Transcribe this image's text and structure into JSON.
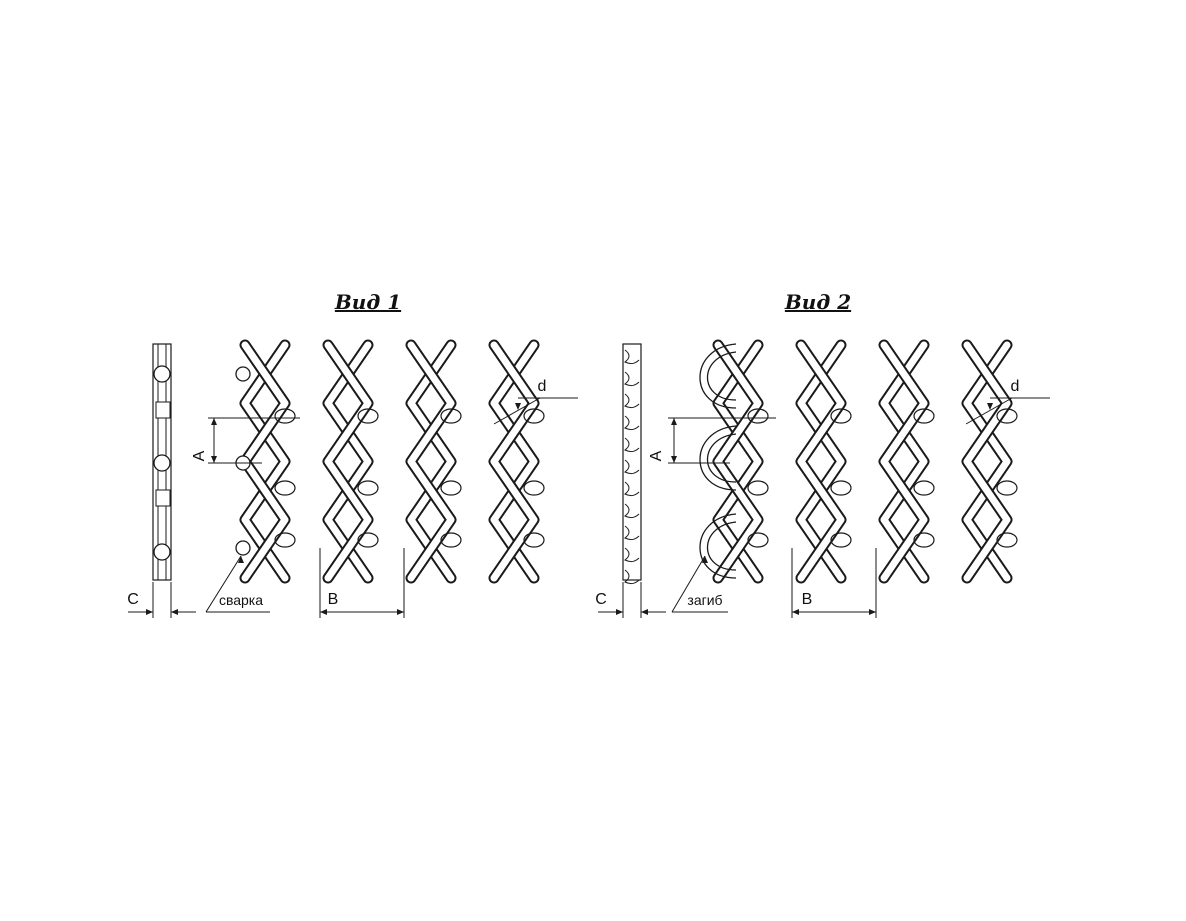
{
  "views": [
    {
      "id": "view1",
      "title": "Вид 1",
      "end_finish": "сварка",
      "dim_labels": {
        "A": "A",
        "B": "B",
        "C": "C",
        "d": "d"
      }
    },
    {
      "id": "view2",
      "title": "Вид 2",
      "end_finish": "загиб",
      "dim_labels": {
        "A": "A",
        "B": "B",
        "C": "C",
        "d": "d"
      }
    }
  ]
}
